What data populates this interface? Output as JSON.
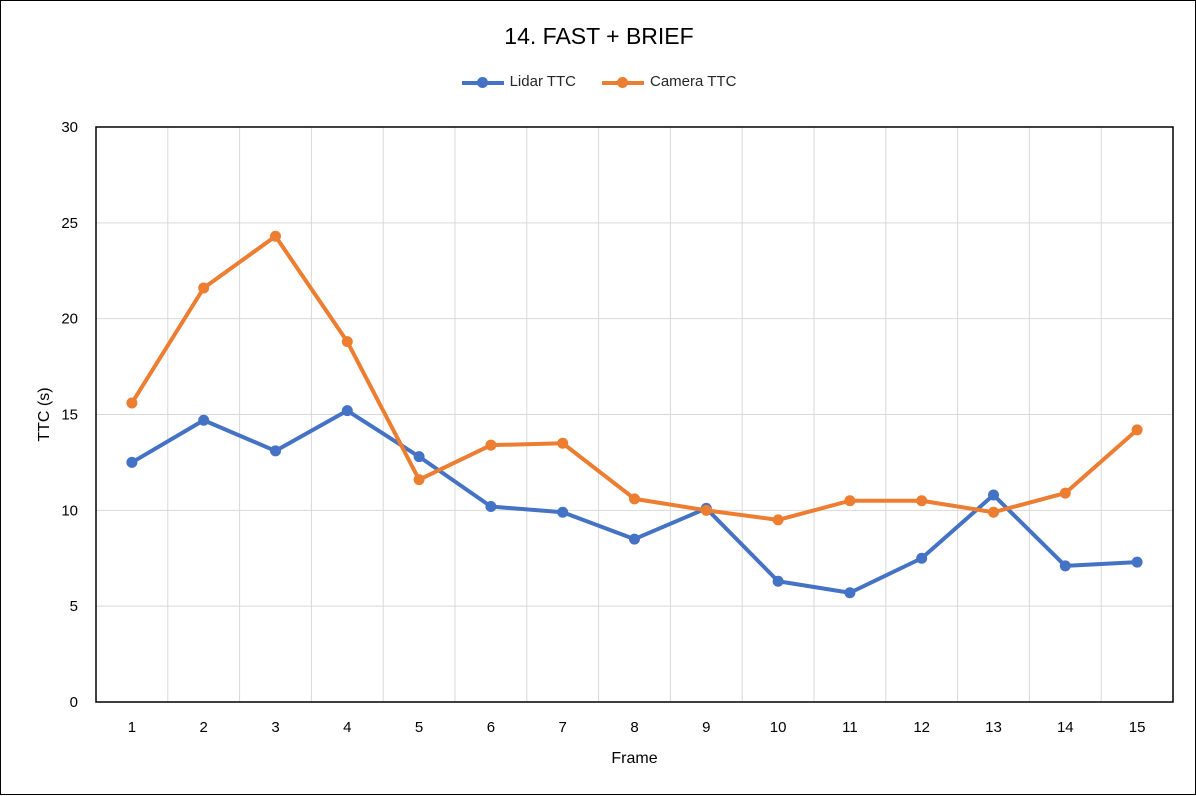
{
  "chart_data": {
    "type": "line",
    "title": "14. FAST + BRIEF",
    "xlabel": "Frame",
    "ylabel": "TTC (s)",
    "categories": [
      "1",
      "2",
      "3",
      "4",
      "5",
      "6",
      "7",
      "8",
      "9",
      "10",
      "11",
      "12",
      "13",
      "14",
      "15"
    ],
    "ylim": [
      0,
      30
    ],
    "yticks": [
      0,
      5,
      10,
      15,
      20,
      25,
      30
    ],
    "grid": true,
    "legend_position": "top",
    "series": [
      {
        "name": "Lidar TTC",
        "color": "#4472C4",
        "values": [
          12.5,
          14.7,
          13.1,
          15.2,
          12.8,
          10.2,
          9.9,
          8.5,
          10.1,
          6.3,
          5.7,
          7.5,
          10.8,
          7.1,
          7.3
        ]
      },
      {
        "name": "Camera TTC",
        "color": "#ED7D31",
        "values": [
          15.6,
          21.6,
          24.3,
          18.8,
          11.6,
          13.4,
          13.5,
          10.6,
          10.0,
          9.5,
          10.5,
          10.5,
          9.9,
          10.9,
          14.2
        ]
      }
    ]
  }
}
